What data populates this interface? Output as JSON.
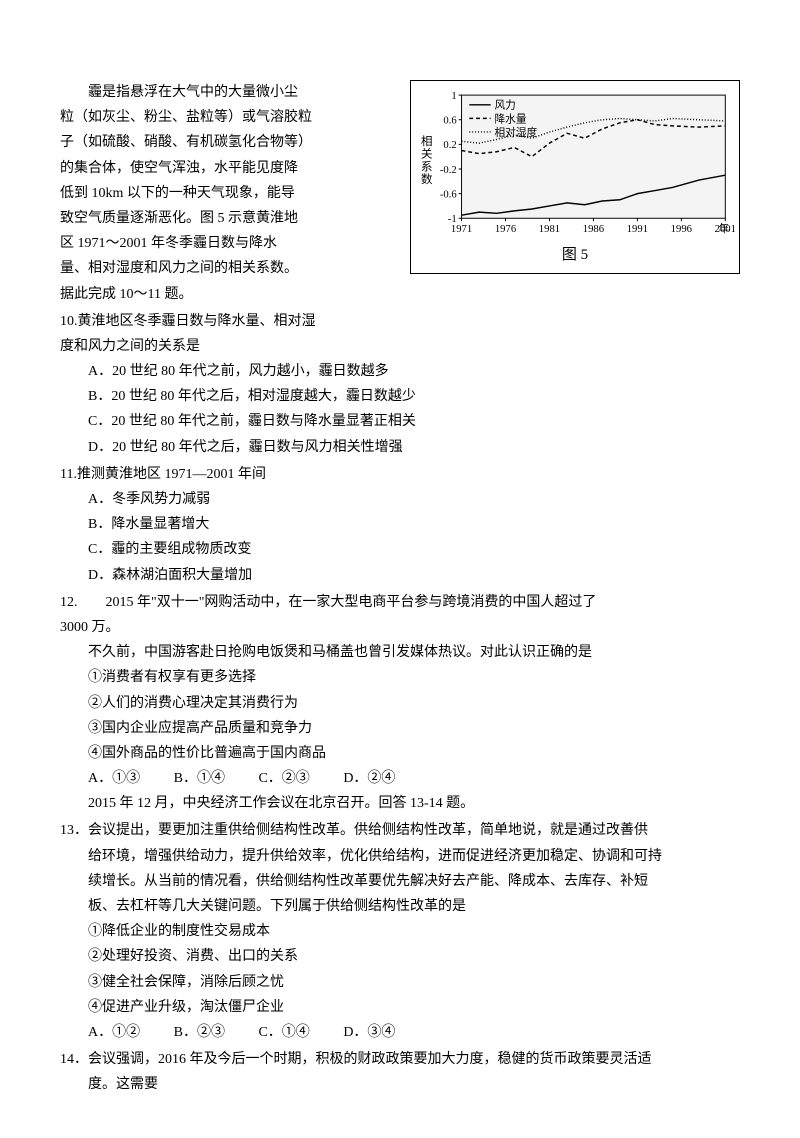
{
  "intro": {
    "l1": "霾是指悬浮在大气中的大量微小尘",
    "l2": "粒（如灰尘、粉尘、盐粒等）或气溶胶粒",
    "l3": "子（如硫酸、硝酸、有机碳氢化合物等）",
    "l4": "的集合体，使空气浑浊，水平能见度降",
    "l5": "低到 10km 以下的一种天气现象，能导",
    "l6": "致空气质量逐渐恶化。图 5 示意黄淮地",
    "l7": "区 1971～2001 年冬季霾日数与降水",
    "l8": "量、相对湿度和风力之间的相关系数。",
    "l9": "据此完成 10～11 题。"
  },
  "chart": {
    "caption": "图 5",
    "yaxis_label": "相关系数",
    "legend": {
      "wind": "风力",
      "precip": "降水量",
      "humidity": "相对湿度"
    },
    "xticks": [
      "1971",
      "1976",
      "1981",
      "1986",
      "1991",
      "1996",
      "2001"
    ],
    "xlabel_suffix": "年",
    "yticks": [
      "1",
      "0.6",
      "0.2",
      "-0.2",
      "-0.6",
      "-1"
    ],
    "ylim": [
      -1,
      1
    ],
    "colors": {
      "axis": "#000000",
      "wind": "#000000",
      "precip": "#000000",
      "humidity": "#000000",
      "text": "#000000",
      "bg": "#f4f4f4"
    },
    "styles": {
      "wind_dash": "none",
      "precip_dash": "4,3",
      "humidity_dash": "1,2",
      "line_width": 1.5,
      "font_size": 11
    },
    "series": {
      "wind_y": [
        -0.95,
        -0.9,
        -0.92,
        -0.88,
        -0.85,
        -0.8,
        -0.75,
        -0.78,
        -0.72,
        -0.7,
        -0.6,
        -0.55,
        -0.5,
        -0.38,
        -0.3
      ],
      "precip_y": [
        0.1,
        0.05,
        0.08,
        0.15,
        0.0,
        0.22,
        0.38,
        0.3,
        0.45,
        0.55,
        0.6,
        0.52,
        0.5,
        0.48,
        0.5
      ],
      "humidity_y": [
        0.25,
        0.22,
        0.28,
        0.35,
        0.3,
        0.4,
        0.48,
        0.55,
        0.6,
        0.62,
        0.6,
        0.58,
        0.62,
        0.6,
        0.58
      ],
      "x_years": [
        1971,
        1973,
        1975,
        1977,
        1979,
        1981,
        1983,
        1985,
        1987,
        1989,
        1991,
        1993,
        1995,
        1998,
        2001
      ]
    }
  },
  "q10": {
    "stem1": "10.黄淮地区冬季霾日数与降水量、相对湿",
    "stem2": "度和风力之间的关系是",
    "a": "A．20 世纪 80 年代之前，风力越小，霾日数越多",
    "b": "B．20 世纪 80 年代之后，相对湿度越大，霾日数越少",
    "c": "C．20 世纪 80 年代之前，霾日数与降水量显著正相关",
    "d": "D．20 世纪 80 年代之后，霾日数与风力相关性增强"
  },
  "q11": {
    "stem": "11.推测黄淮地区 1971―2001 年间",
    "a": "A．冬季风势力减弱",
    "b": "B．降水量显著增大",
    "c": "C．霾的主要组成物质改变",
    "d": "D．森林湖泊面积大量增加"
  },
  "q12": {
    "stem1": "12.　　2015 年\"双十一\"网购活动中，在一家大型电商平台参与跨境消费的中国人超过了",
    "stem2": "3000 万。",
    "line1": "不久前，中国游客赴日抢购电饭煲和马桶盖也曾引发媒体热议。对此认识正确的是",
    "i1": "①消费者有权享有更多选择",
    "i2": "②人们的消费心理决定其消费行为",
    "i3": "③国内企业应提高产品质量和竞争力",
    "i4": "④国外商品的性价比普遍高于国内商品",
    "opts": {
      "a": "A．①③",
      "b": "B．①④",
      "c": "C．②③",
      "d": "D．②④"
    }
  },
  "context13": "2015 年 12 月，中央经济工作会议在北京召开。回答 13-14 题。",
  "q13": {
    "stem1": "13．会议提出，要更加注重供给侧结构性改革。供给侧结构性改革，简单地说，就是通过改善供",
    "line1": "给环境，增强供给动力，提升供给效率，优化供给结构，进而促进经济更加稳定、协调和可持",
    "line2": "续增长。从当前的情况看，供给侧结构性改革要优先解决好去产能、降成本、去库存、补短",
    "line3": "板、去杠杆等几大关键问题。下列属于供给侧结构性改革的是",
    "i1": "①降低企业的制度性交易成本",
    "i2": "②处理好投资、消费、出口的关系",
    "i3": "③健全社会保障，消除后顾之忧",
    "i4": "④促进产业升级，淘汰僵尸企业",
    "opts": {
      "a": "A．①②",
      "b": "B．②③",
      "c": "C．①④",
      "d": "D．③④"
    }
  },
  "q14": {
    "stem1": "14．会议强调，2016 年及今后一个时期，积极的财政政策要加大力度，稳健的货币政策要灵活适",
    "line1": "度。这需要"
  }
}
